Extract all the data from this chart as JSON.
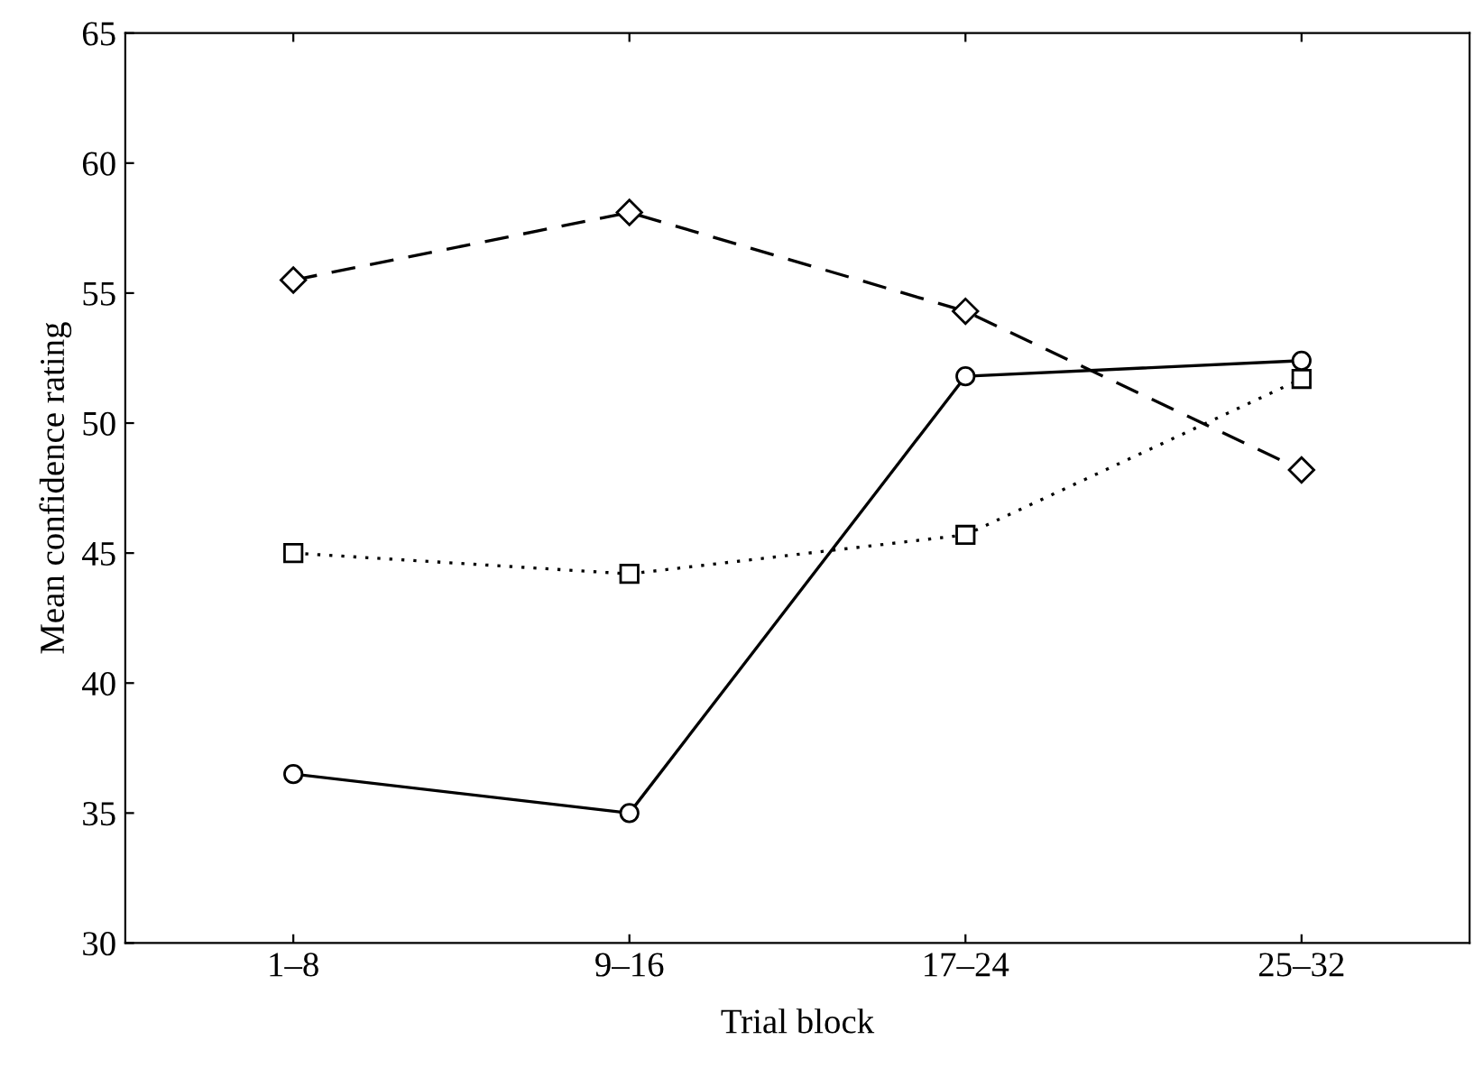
{
  "chart_data": {
    "type": "line",
    "xlabel": "Trial block",
    "ylabel": "Mean confidence rating",
    "categories": [
      "1–8",
      "9–16",
      "17–24",
      "25–32"
    ],
    "series": [
      {
        "color": "#000000",
        "values": [
          55.5,
          58.1,
          54.3,
          48.2
        ],
        "marker": "diamond",
        "line_style": "dashed"
      },
      {
        "color": "#000000",
        "values": [
          45.0,
          44.2,
          45.7,
          51.7
        ],
        "marker": "square",
        "line_style": "dotted"
      },
      {
        "color": "#000000",
        "values": [
          36.5,
          35.0,
          51.8,
          52.4
        ],
        "marker": "circle",
        "line_style": "solid"
      }
    ],
    "ylim": [
      30,
      65
    ],
    "yticks": [
      30,
      35,
      40,
      45,
      50,
      55,
      60,
      65
    ],
    "grid": false,
    "legend": false
  }
}
